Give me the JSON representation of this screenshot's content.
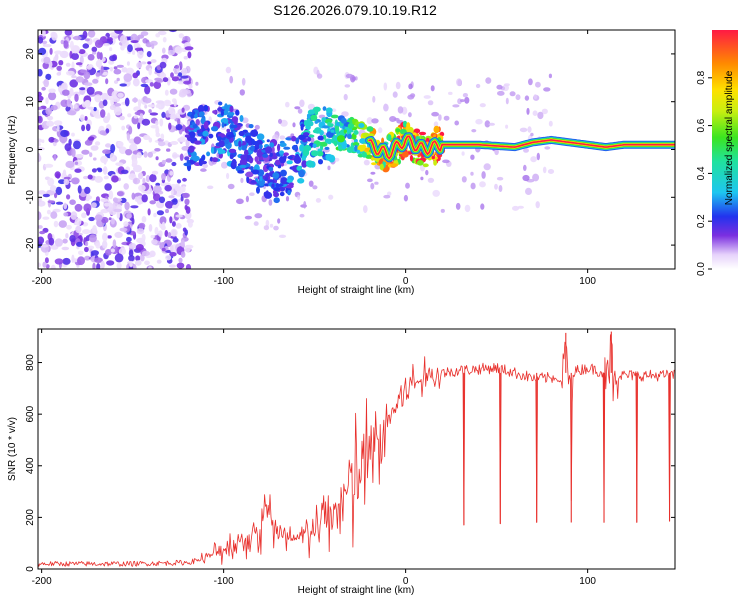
{
  "title": "S126.2026.079.10.19.R12",
  "chart_data": [
    {
      "type": "heatmap",
      "xlabel": "Height of straight line (km)",
      "ylabel": "Frequency (Hz)",
      "xlim": [
        -202,
        148
      ],
      "ylim": [
        -25,
        25
      ],
      "x_ticks": [
        -200,
        -100,
        0,
        100
      ],
      "x_tick_labels": [
        "-200",
        "-100",
        "0",
        "100"
      ],
      "y_ticks": [
        -20,
        -10,
        0,
        10,
        20
      ],
      "y_tick_labels": [
        "-20",
        "-10",
        "0",
        "10",
        "20"
      ],
      "colorbar": {
        "label": "Normalized spectral amplitude",
        "range": [
          0,
          1
        ],
        "ticks": [
          0.0,
          0.2,
          0.4,
          0.6,
          0.8
        ],
        "tick_labels": [
          "0.0",
          "0.2",
          "0.4",
          "0.6",
          "0.8"
        ]
      },
      "ridge": {
        "x": [
          -120,
          -110,
          -100,
          -90,
          -80,
          -70,
          -60,
          -50,
          -40,
          -30,
          -20,
          -10,
          0,
          10,
          20,
          40,
          60,
          70,
          80,
          90,
          100,
          110,
          120,
          148
        ],
        "y": [
          2,
          3,
          4,
          1,
          -3,
          -5,
          -2,
          3,
          4,
          3,
          1,
          -1,
          2,
          0,
          1,
          1,
          0.5,
          1.5,
          2,
          1.5,
          1,
          0.5,
          1,
          1
        ],
        "amplitude": [
          0.25,
          0.25,
          0.28,
          0.25,
          0.25,
          0.25,
          0.3,
          0.4,
          0.45,
          0.5,
          0.7,
          0.85,
          0.9,
          0.95,
          0.98,
          1.0,
          1.0,
          1.0,
          1.0,
          1.0,
          1.0,
          1.0,
          1.0,
          1.0
        ]
      }
    },
    {
      "type": "line",
      "xlabel": "Height of straight line (km)",
      "ylabel": "SNR (10 * v/v)",
      "xlim": [
        -202,
        148
      ],
      "ylim": [
        0,
        930
      ],
      "x_ticks": [
        -200,
        -100,
        0,
        100
      ],
      "x_tick_labels": [
        "-200",
        "-100",
        "0",
        "100"
      ],
      "y_ticks": [
        0,
        200,
        400,
        600,
        800
      ],
      "y_tick_labels": [
        "0",
        "200",
        "400",
        "600",
        "800"
      ],
      "series": [
        {
          "name": "SNR",
          "color": "#e8302c",
          "x": [
            -202,
            -150,
            -120,
            -110,
            -100,
            -90,
            -80,
            -76,
            -70,
            -60,
            -50,
            -40,
            -30,
            -20,
            -15,
            -10,
            -5,
            0,
            10,
            20,
            30,
            40,
            50,
            60,
            70,
            80,
            90,
            100,
            110,
            120,
            130,
            140,
            148
          ],
          "y": [
            20,
            20,
            25,
            40,
            80,
            110,
            150,
            260,
            120,
            110,
            150,
            220,
            320,
            430,
            480,
            560,
            640,
            700,
            740,
            760,
            770,
            775,
            780,
            760,
            740,
            740,
            760,
            780,
            760,
            750,
            750,
            750,
            750
          ],
          "dropouts": [
            {
              "x": 32,
              "y": 170
            },
            {
              "x": 52,
              "y": 175
            },
            {
              "x": 72,
              "y": 180
            },
            {
              "x": 91,
              "y": 180
            },
            {
              "x": 109,
              "y": 180
            },
            {
              "x": 127,
              "y": 180
            },
            {
              "x": 145,
              "y": 185
            }
          ],
          "spikes": [
            {
              "x": 88,
              "y": 915
            },
            {
              "x": 113,
              "y": 920
            }
          ]
        }
      ]
    }
  ]
}
